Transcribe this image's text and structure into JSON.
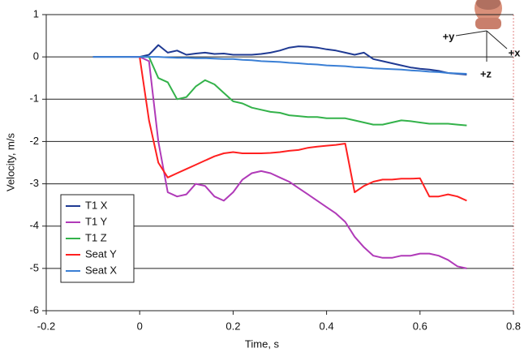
{
  "chart_data": {
    "type": "line",
    "x_label": "Time, s",
    "y_label": "Velocity, m/s",
    "annotations": [
      "+y",
      "+x",
      "+z"
    ],
    "xlim": [
      -0.2,
      0.8
    ],
    "xticks": [
      -0.2,
      0,
      0.2,
      0.4,
      0.6,
      0.8
    ],
    "ylim": [
      -6,
      1
    ],
    "yticks": [
      -6,
      -5,
      -4,
      -3,
      -2,
      -1,
      0,
      1
    ],
    "grid": true,
    "legend_position": "lower left",
    "x": [
      -0.1,
      -0.08,
      -0.06,
      -0.04,
      -0.02,
      0,
      0.02,
      0.04,
      0.06,
      0.08,
      0.1,
      0.12,
      0.14,
      0.16,
      0.18,
      0.2,
      0.22,
      0.24,
      0.26,
      0.28,
      0.3,
      0.32,
      0.34,
      0.36,
      0.38,
      0.4,
      0.42,
      0.44,
      0.46,
      0.48,
      0.5,
      0.52,
      0.54,
      0.56,
      0.58,
      0.6,
      0.62,
      0.64,
      0.66,
      0.68,
      0.7
    ],
    "series": [
      {
        "name": "T1 X",
        "color": "#1f3a93",
        "values": [
          0,
          0,
          0,
          0,
          0,
          0,
          0.05,
          0.28,
          0.1,
          0.15,
          0.05,
          0.08,
          0.1,
          0.07,
          0.08,
          0.05,
          0.05,
          0.05,
          0.07,
          0.1,
          0.15,
          0.22,
          0.25,
          0.24,
          0.22,
          0.18,
          0.15,
          0.1,
          0.05,
          0.1,
          -0.05,
          -0.1,
          -0.15,
          -0.2,
          -0.25,
          -0.28,
          -0.3,
          -0.33,
          -0.38,
          -0.4,
          -0.42
        ]
      },
      {
        "name": "T1 Y",
        "color": "#b03ab8",
        "values": [
          null,
          null,
          null,
          null,
          0,
          0,
          -0.1,
          -2.0,
          -3.2,
          -3.3,
          -3.25,
          -3.0,
          -3.05,
          -3.3,
          -3.4,
          -3.2,
          -2.9,
          -2.75,
          -2.7,
          -2.75,
          -2.85,
          -2.95,
          -3.1,
          -3.25,
          -3.4,
          -3.55,
          -3.7,
          -3.9,
          -4.25,
          -4.5,
          -4.7,
          -4.75,
          -4.75,
          -4.7,
          -4.7,
          -4.65,
          -4.65,
          -4.7,
          -4.8,
          -4.95,
          -5.0
        ]
      },
      {
        "name": "T1 Z",
        "color": "#33b24a",
        "values": [
          null,
          null,
          null,
          null,
          null,
          0,
          0,
          -0.5,
          -0.6,
          -1.0,
          -0.95,
          -0.7,
          -0.55,
          -0.65,
          -0.85,
          -1.05,
          -1.1,
          -1.2,
          -1.25,
          -1.3,
          -1.32,
          -1.38,
          -1.4,
          -1.42,
          -1.42,
          -1.45,
          -1.45,
          -1.45,
          -1.5,
          -1.55,
          -1.6,
          -1.6,
          -1.55,
          -1.5,
          -1.52,
          -1.55,
          -1.58,
          -1.58,
          -1.58,
          -1.6,
          -1.62
        ]
      },
      {
        "name": "Seat Y",
        "color": "#ff2020",
        "values": [
          null,
          null,
          null,
          null,
          null,
          0,
          -1.5,
          -2.5,
          -2.85,
          -2.75,
          -2.65,
          -2.55,
          -2.45,
          -2.35,
          -2.28,
          -2.25,
          -2.28,
          -2.28,
          -2.28,
          -2.27,
          -2.25,
          -2.22,
          -2.2,
          -2.15,
          -2.12,
          -2.1,
          -2.08,
          -2.05,
          -3.2,
          -3.05,
          -2.95,
          -2.9,
          -2.9,
          -2.88,
          -2.88,
          -2.87,
          -3.3,
          -3.3,
          -3.25,
          -3.3,
          -3.4
        ]
      },
      {
        "name": "Seat X",
        "color": "#3a7fd5",
        "values": [
          0,
          0,
          0,
          0,
          0,
          0,
          0,
          0,
          -0.01,
          -0.02,
          -0.02,
          -0.03,
          -0.03,
          -0.04,
          -0.05,
          -0.05,
          -0.07,
          -0.08,
          -0.1,
          -0.11,
          -0.12,
          -0.14,
          -0.15,
          -0.17,
          -0.18,
          -0.2,
          -0.21,
          -0.22,
          -0.24,
          -0.25,
          -0.27,
          -0.28,
          -0.29,
          -0.3,
          -0.32,
          -0.33,
          -0.35,
          -0.36,
          -0.38,
          -0.39,
          -0.4
        ]
      }
    ]
  }
}
